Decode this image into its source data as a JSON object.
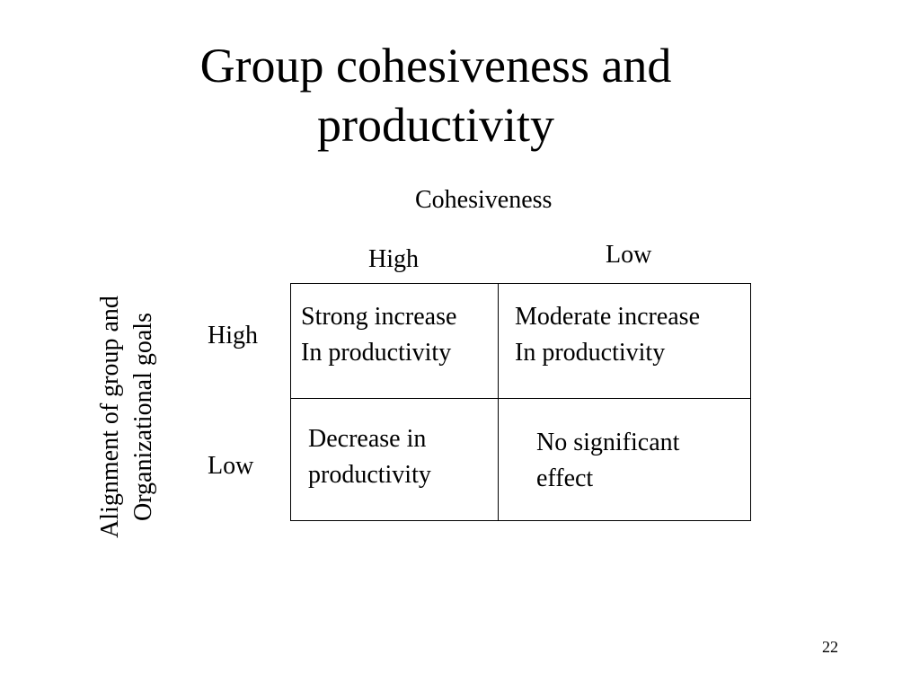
{
  "slide": {
    "title_lines": [
      "Group cohesiveness and",
      "productivity"
    ],
    "page_number": "22"
  },
  "matrix": {
    "column_axis_label": "Cohesiveness",
    "column_headers": [
      "High",
      "Low"
    ],
    "row_axis_label_lines": [
      "Alignment of group and",
      "Organizational goals"
    ],
    "row_headers": [
      "High",
      "Low"
    ],
    "cells": {
      "high_high": [
        "Strong increase",
        "In productivity"
      ],
      "high_low": [
        "Moderate increase",
        "In productivity"
      ],
      "low_high": [
        "Decrease in",
        "productivity"
      ],
      "low_low": [
        "No significant",
        "effect"
      ]
    }
  }
}
